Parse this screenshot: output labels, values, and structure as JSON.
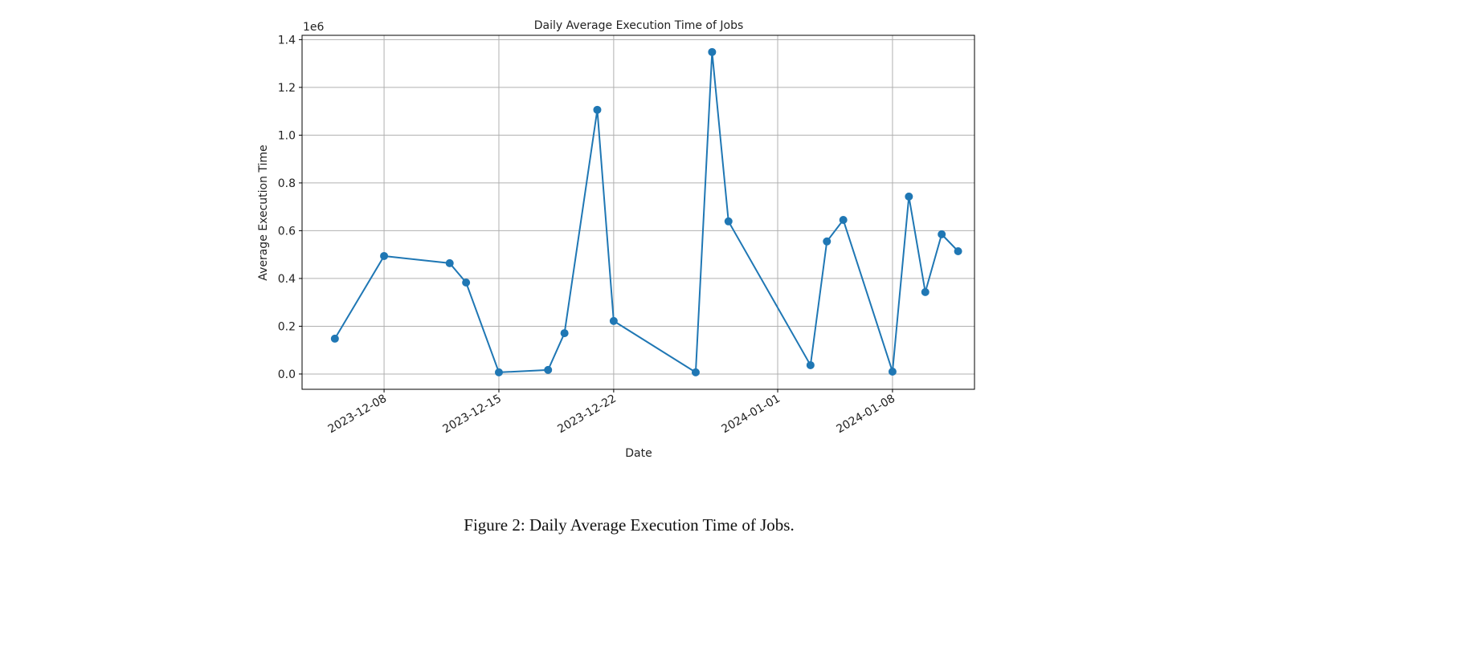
{
  "chart_data": {
    "type": "line",
    "title": "Daily Average Execution Time of Jobs",
    "xlabel": "Date",
    "ylabel": "Average Execution Time",
    "y_offset_label": "1e6",
    "x": [
      "2023-12-05",
      "2023-12-08",
      "2023-12-12",
      "2023-12-13",
      "2023-12-15",
      "2023-12-18",
      "2023-12-19",
      "2023-12-21",
      "2023-12-22",
      "2023-12-27",
      "2023-12-28",
      "2023-12-29",
      "2024-01-03",
      "2024-01-04",
      "2024-01-05",
      "2024-01-08",
      "2024-01-09",
      "2024-01-10",
      "2024-01-11",
      "2024-01-12"
    ],
    "y": [
      148000,
      494000,
      464000,
      383000,
      7000,
      17000,
      171000,
      1106000,
      222000,
      7000,
      1348000,
      639000,
      37000,
      555000,
      645000,
      10000,
      743000,
      343000,
      585000,
      514000
    ],
    "xticks": [
      "2023-12-08",
      "2023-12-15",
      "2023-12-22",
      "2024-01-01",
      "2024-01-08"
    ],
    "yticks": [
      "0.0",
      "0.2",
      "0.4",
      "0.6",
      "0.8",
      "1.0",
      "1.2",
      "1.4"
    ],
    "ylim": [
      -64000,
      1418000
    ],
    "xlim": [
      "2023-12-03",
      "2024-01-13"
    ],
    "grid": true,
    "marker": "circle",
    "color": "#1f77b4"
  },
  "caption": "Figure 2: Daily Average Execution Time of Jobs."
}
